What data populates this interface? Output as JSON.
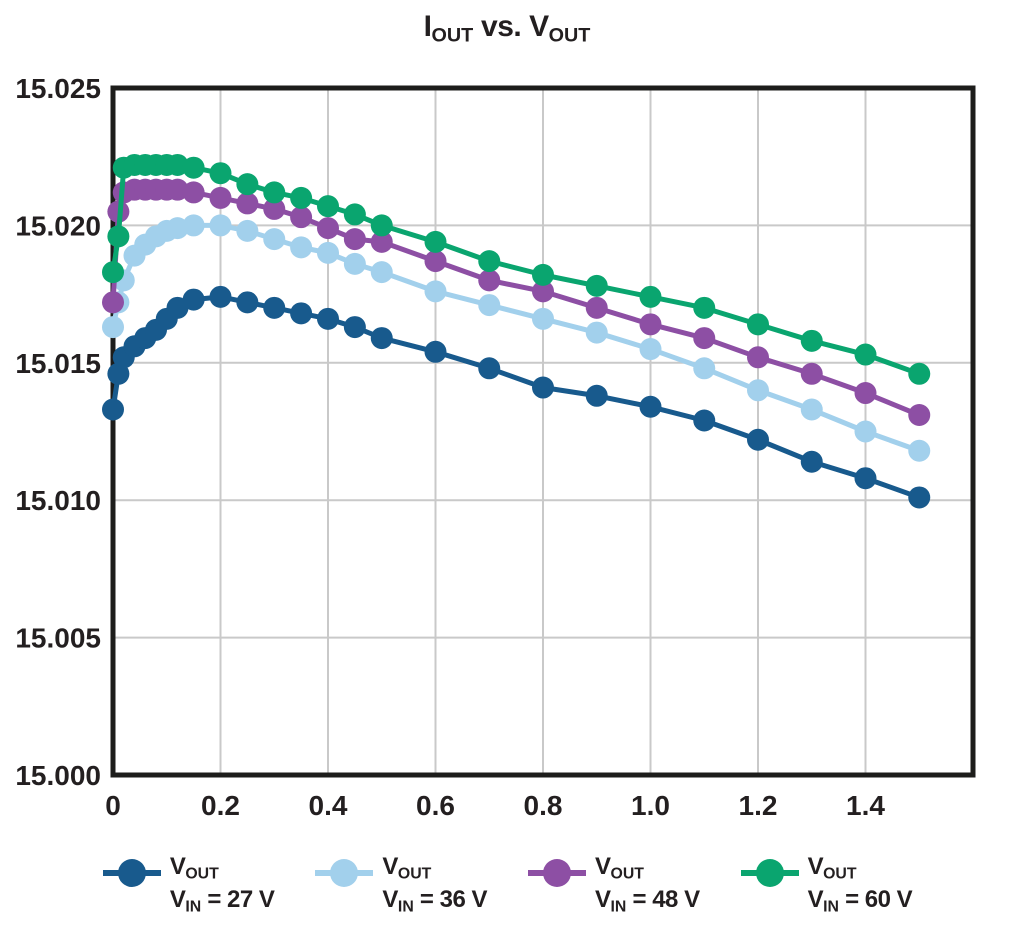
{
  "title": {
    "segments": [
      {
        "text": "I"
      },
      {
        "text": "OUT",
        "sub": true
      },
      {
        "text": " vs. V"
      },
      {
        "text": "OUT",
        "sub": true
      }
    ]
  },
  "colors": {
    "vin27": "#185a8d",
    "vin36": "#a2d0ec",
    "vin48": "#8d4fa4",
    "vin60": "#0aa56f",
    "gridline": "#c9c9c9",
    "plot_border": "#1d1d1b",
    "text": "#231f20"
  },
  "chart_data": {
    "type": "line",
    "title": "IOUT vs. VOUT",
    "xlabel": "",
    "ylabel": "",
    "grid": true,
    "legend_position": "bottom",
    "xlim": [
      0,
      1.6
    ],
    "ylim": [
      15.0,
      15.025
    ],
    "x_grid_step": 0.2,
    "y_grid_step": 0.005,
    "x_ticks": [
      {
        "value": 0.0,
        "label": "0"
      },
      {
        "value": 0.2,
        "label": "0.2"
      },
      {
        "value": 0.4,
        "label": "0.4"
      },
      {
        "value": 0.6,
        "label": "0.6"
      },
      {
        "value": 0.8,
        "label": "0.8"
      },
      {
        "value": 1.0,
        "label": "1.0"
      },
      {
        "value": 1.2,
        "label": "1.2"
      },
      {
        "value": 1.4,
        "label": "1.4"
      }
    ],
    "y_ticks": [
      {
        "value": 15.0,
        "label": "15.000"
      },
      {
        "value": 15.005,
        "label": "15.005"
      },
      {
        "value": 15.01,
        "label": "15.010"
      },
      {
        "value": 15.015,
        "label": "15.015"
      },
      {
        "value": 15.02,
        "label": "15.020"
      },
      {
        "value": 15.025,
        "label": "15.025"
      }
    ],
    "x": [
      0,
      0.01,
      0.02,
      0.04,
      0.06,
      0.08,
      0.1,
      0.12,
      0.15,
      0.2,
      0.25,
      0.3,
      0.35,
      0.4,
      0.45,
      0.5,
      0.6,
      0.7,
      0.8,
      0.9,
      1.0,
      1.1,
      1.2,
      1.3,
      1.4,
      1.5
    ],
    "series": [
      {
        "name": "VOUT, VIN = 27 V",
        "color_key": "vin27",
        "values": [
          15.0133,
          15.0146,
          15.0152,
          15.0156,
          15.0159,
          15.0162,
          15.0166,
          15.017,
          15.0173,
          15.0174,
          15.0172,
          15.017,
          15.0168,
          15.0166,
          15.0163,
          15.0159,
          15.0154,
          15.0148,
          15.0141,
          15.0138,
          15.0134,
          15.0129,
          15.0122,
          15.0114,
          15.0108,
          15.0101
        ]
      },
      {
        "name": "VOUT, VIN = 36 V",
        "color_key": "vin36",
        "values": [
          15.0163,
          15.0172,
          15.018,
          15.0189,
          15.0193,
          15.0196,
          15.0198,
          15.0199,
          15.02,
          15.02,
          15.0198,
          15.0195,
          15.0192,
          15.019,
          15.0186,
          15.0183,
          15.0176,
          15.0171,
          15.0166,
          15.0161,
          15.0155,
          15.0148,
          15.014,
          15.0133,
          15.0125,
          15.0118
        ]
      },
      {
        "name": "VOUT, VIN = 48 V",
        "color_key": "vin48",
        "values": [
          15.0172,
          15.0205,
          15.0212,
          15.0213,
          15.0213,
          15.0213,
          15.0213,
          15.0213,
          15.0212,
          15.021,
          15.0208,
          15.0206,
          15.0203,
          15.0199,
          15.0195,
          15.0194,
          15.0187,
          15.018,
          15.0176,
          15.017,
          15.0164,
          15.0159,
          15.0152,
          15.0146,
          15.0139,
          15.0131
        ]
      },
      {
        "name": "VOUT, VIN = 60 V",
        "color_key": "vin60",
        "values": [
          15.0183,
          15.0196,
          15.0221,
          15.0222,
          15.0222,
          15.0222,
          15.0222,
          15.0222,
          15.0221,
          15.0219,
          15.0215,
          15.0212,
          15.021,
          15.0207,
          15.0204,
          15.02,
          15.0194,
          15.0187,
          15.0182,
          15.0178,
          15.0174,
          15.017,
          15.0164,
          15.0158,
          15.0153,
          15.0146
        ]
      }
    ]
  },
  "legend": {
    "items": [
      {
        "id": "vin-27",
        "color_key": "vin27",
        "line1": [
          {
            "text": "V"
          },
          {
            "text": "OUT",
            "sub": true
          }
        ],
        "line2": [
          {
            "text": "V"
          },
          {
            "text": "IN",
            "sub": true
          },
          {
            "text": " = 27 V"
          }
        ]
      },
      {
        "id": "vin-36",
        "color_key": "vin36",
        "line1": [
          {
            "text": "V"
          },
          {
            "text": "OUT",
            "sub": true
          }
        ],
        "line2": [
          {
            "text": "V"
          },
          {
            "text": "IN",
            "sub": true
          },
          {
            "text": " = 36 V"
          }
        ]
      },
      {
        "id": "vin-48",
        "color_key": "vin48",
        "line1": [
          {
            "text": "V"
          },
          {
            "text": "OUT",
            "sub": true
          }
        ],
        "line2": [
          {
            "text": "V"
          },
          {
            "text": "IN",
            "sub": true
          },
          {
            "text": " = 48 V"
          }
        ]
      },
      {
        "id": "vin-60",
        "color_key": "vin60",
        "line1": [
          {
            "text": "V"
          },
          {
            "text": "OUT",
            "sub": true
          }
        ],
        "line2": [
          {
            "text": "V"
          },
          {
            "text": "IN",
            "sub": true
          },
          {
            "text": " = 60 V"
          }
        ]
      }
    ]
  }
}
